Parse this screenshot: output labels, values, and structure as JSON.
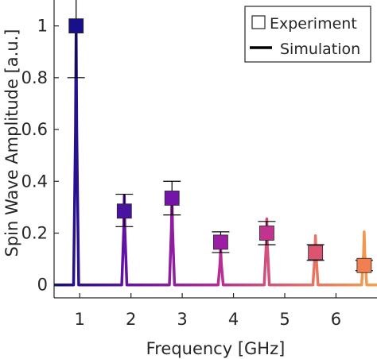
{
  "chart_data": {
    "type": "line",
    "xlabel": "Frequency [GHz]",
    "ylabel": "Spin Wave Amplitude [a.u.]",
    "xlim": [
      0.5,
      6.8
    ],
    "ylim": [
      -0.05,
      1.1
    ],
    "xticks": [
      1,
      2,
      3,
      4,
      5,
      6
    ],
    "yticks": [
      0,
      0.2,
      0.4,
      0.6,
      0.8,
      1
    ],
    "ytick_labels": [
      "0",
      "0.2",
      "0.4",
      "0.6",
      "0.8",
      "1"
    ],
    "grid": false,
    "legend": {
      "placement": "top-right",
      "entries": [
        {
          "label": "Experiment",
          "marker": "open-square"
        },
        {
          "label": "Simulation",
          "marker": "line"
        }
      ]
    },
    "series": [
      {
        "name": "Experiment",
        "kind": "marker-errorbar",
        "points": [
          {
            "x": 0.93,
            "y": 1.0,
            "err_low": 0.8,
            "err_high": 1.2,
            "color": "#1a0f8a"
          },
          {
            "x": 1.87,
            "y": 0.285,
            "err_low": 0.225,
            "err_high": 0.35,
            "color": "#4a12a0"
          },
          {
            "x": 2.8,
            "y": 0.335,
            "err_low": 0.27,
            "err_high": 0.4,
            "color": "#7414a8"
          },
          {
            "x": 3.75,
            "y": 0.165,
            "err_low": 0.125,
            "err_high": 0.205,
            "color": "#9c1ea3"
          },
          {
            "x": 4.65,
            "y": 0.2,
            "err_low": 0.155,
            "err_high": 0.245,
            "color": "#c1338f"
          },
          {
            "x": 5.6,
            "y": 0.125,
            "err_low": 0.095,
            "err_high": 0.155,
            "color": "#db5570"
          },
          {
            "x": 6.55,
            "y": 0.075,
            "err_low": 0.055,
            "err_high": 0.095,
            "color": "#f17f50"
          }
        ]
      },
      {
        "name": "Simulation",
        "kind": "line",
        "baseline": 0,
        "peaks": [
          {
            "x": 0.93,
            "y": 1.0
          },
          {
            "x": 1.87,
            "y": 0.345
          },
          {
            "x": 2.8,
            "y": 0.355
          },
          {
            "x": 3.75,
            "y": 0.14
          },
          {
            "x": 4.65,
            "y": 0.255
          },
          {
            "x": 5.6,
            "y": 0.19
          },
          {
            "x": 6.55,
            "y": 0.205
          }
        ],
        "gradient": [
          "#0e0f85",
          "#6e12a8",
          "#b62a97",
          "#e3666a",
          "#f6a04a"
        ]
      }
    ]
  }
}
